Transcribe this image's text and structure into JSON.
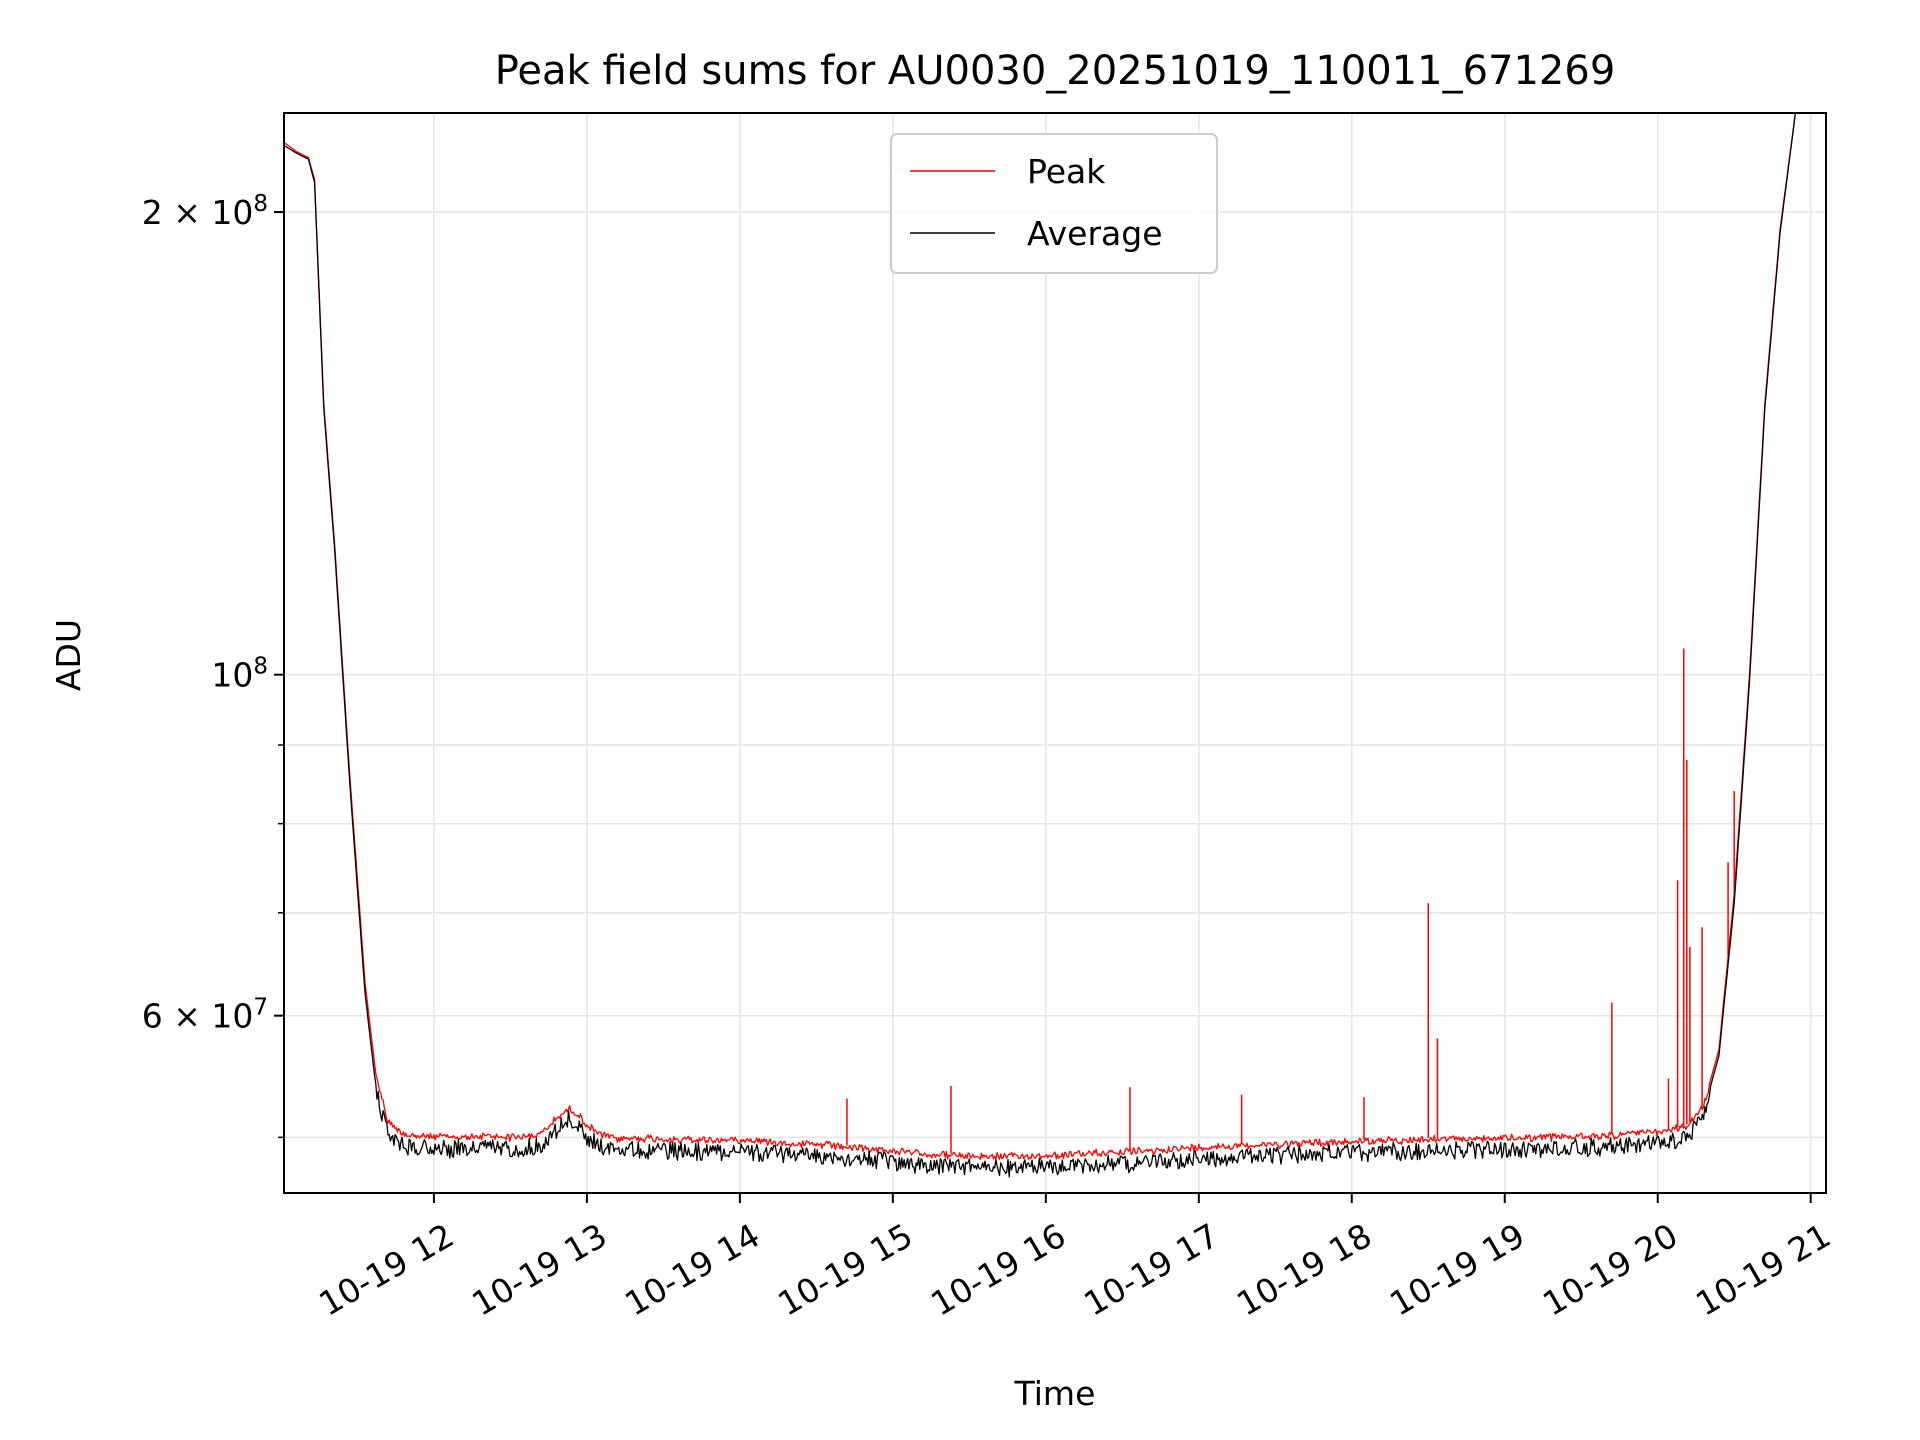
{
  "chart_data": {
    "type": "line",
    "title": "Peak field sums for AU0030_20251019_110011_671269",
    "xlabel": "Time",
    "ylabel": "ADU",
    "yscale": "log",
    "grid": true,
    "legend_position": "top-center",
    "xlim": [
      11.02,
      21.1
    ],
    "ylim": [
      46000000.0,
      232000000.0
    ],
    "x_ticks": [
      {
        "value": 12,
        "label": "10-19 12"
      },
      {
        "value": 13,
        "label": "10-19 13"
      },
      {
        "value": 14,
        "label": "10-19 14"
      },
      {
        "value": 15,
        "label": "10-19 15"
      },
      {
        "value": 16,
        "label": "10-19 16"
      },
      {
        "value": 17,
        "label": "10-19 17"
      },
      {
        "value": 18,
        "label": "10-19 18"
      },
      {
        "value": 19,
        "label": "10-19 19"
      },
      {
        "value": 20,
        "label": "10-19 20"
      },
      {
        "value": 21,
        "label": "10-19 21"
      }
    ],
    "y_major_ticks": [
      {
        "value": 100000000,
        "base": "10",
        "exp": "8"
      },
      {
        "value": 60000000,
        "base": "6 × 10",
        "exp": "7"
      },
      {
        "value": 200000000,
        "base": "2 × 10",
        "exp": "8"
      }
    ],
    "y_minor_ticks": [
      50000000,
      70000000,
      80000000,
      90000000
    ],
    "series": [
      {
        "name": "Peak",
        "color": "#ff0000",
        "x": [
          11.02,
          11.1,
          11.18,
          11.22,
          11.28,
          11.35,
          11.45,
          11.55,
          11.62,
          11.7,
          11.8,
          11.9,
          12.0,
          12.2,
          12.4,
          12.6,
          12.7,
          12.8,
          12.88,
          12.95,
          13.0,
          13.1,
          13.2,
          13.4,
          13.6,
          13.8,
          14.0,
          14.3,
          14.6,
          14.9,
          15.2,
          15.5,
          15.8,
          16.1,
          16.4,
          16.7,
          17.0,
          17.3,
          17.6,
          17.9,
          18.2,
          18.5,
          18.8,
          19.1,
          19.4,
          19.7,
          19.9,
          20.05,
          20.2,
          20.3,
          20.4,
          20.5,
          20.6,
          20.7,
          20.8,
          20.9,
          21.1
        ],
        "y": [
          222000000,
          219000000,
          217000000,
          210000000,
          150000000,
          122000000,
          86000000,
          63000000,
          55000000,
          51300000,
          50400000,
          50200000,
          50150000,
          50100000,
          50200000,
          50100000,
          50400000,
          51500000,
          52300000,
          51800000,
          51000000,
          50300000,
          50000000,
          50050000,
          49950000,
          49900000,
          49950000,
          49700000,
          49500000,
          49200000,
          48900000,
          48700000,
          48700000,
          48800000,
          49000000,
          49100000,
          49400000,
          49500000,
          49650000,
          49750000,
          49850000,
          49950000,
          50000000,
          50050000,
          50150000,
          50250000,
          50450000,
          50550000,
          51000000,
          52500000,
          57000000,
          72000000,
          100000000,
          150000000,
          195000000,
          232000000,
          232000000
        ],
        "spikes": [
          {
            "x": 14.7,
            "y": 53000000
          },
          {
            "x": 15.38,
            "y": 54000000
          },
          {
            "x": 16.55,
            "y": 53900000
          },
          {
            "x": 17.28,
            "y": 53300000
          },
          {
            "x": 18.08,
            "y": 53100000
          },
          {
            "x": 18.5,
            "y": 71000000
          },
          {
            "x": 18.56,
            "y": 58000000
          },
          {
            "x": 19.7,
            "y": 61200000
          },
          {
            "x": 20.07,
            "y": 54600000
          },
          {
            "x": 20.13,
            "y": 73500000
          },
          {
            "x": 20.17,
            "y": 104000000
          },
          {
            "x": 20.19,
            "y": 88000000
          },
          {
            "x": 20.21,
            "y": 66500000
          },
          {
            "x": 20.29,
            "y": 68500000
          },
          {
            "x": 20.46,
            "y": 75500000
          },
          {
            "x": 20.5,
            "y": 84000000
          }
        ]
      },
      {
        "name": "Average",
        "color": "#000000",
        "x": [
          11.02,
          11.1,
          11.18,
          11.22,
          11.28,
          11.35,
          11.45,
          11.55,
          11.62,
          11.7,
          11.8,
          11.9,
          12.0,
          12.2,
          12.4,
          12.6,
          12.7,
          12.8,
          12.88,
          12.95,
          13.0,
          13.1,
          13.2,
          13.4,
          13.6,
          13.8,
          14.0,
          14.3,
          14.6,
          14.9,
          15.2,
          15.5,
          15.8,
          16.1,
          16.4,
          16.7,
          17.0,
          17.3,
          17.6,
          17.9,
          18.2,
          18.5,
          18.8,
          19.1,
          19.4,
          19.7,
          19.9,
          20.05,
          20.2,
          20.3,
          20.4,
          20.5,
          20.6,
          20.7,
          20.8,
          20.9,
          21.1
        ],
        "y": [
          221000000,
          218500000,
          216500000,
          209000000,
          149000000,
          121000000,
          85000000,
          62000000,
          54000000,
          50700000,
          49900000,
          49700000,
          49650000,
          49600000,
          49700000,
          49600000,
          49900000,
          51000000,
          51800000,
          51200000,
          50400000,
          49700000,
          49500000,
          49550000,
          49450000,
          49400000,
          49450000,
          49200000,
          49000000,
          48700000,
          48400000,
          48200000,
          48200000,
          48300000,
          48500000,
          48600000,
          48900000,
          49000000,
          49150000,
          49250000,
          49350000,
          49450000,
          49500000,
          49550000,
          49650000,
          49750000,
          49950000,
          50050000,
          50500000,
          52000000,
          56500000,
          71000000,
          99000000,
          149000000,
          194000000,
          232000000,
          232000000
        ]
      }
    ]
  }
}
